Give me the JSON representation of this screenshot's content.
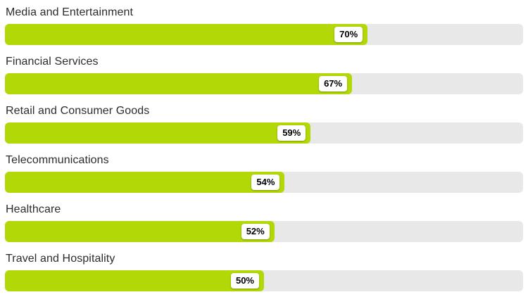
{
  "chart_data": {
    "type": "bar",
    "orientation": "horizontal",
    "title": "",
    "xlabel": "",
    "ylabel": "",
    "xlim": [
      0,
      100
    ],
    "grid": false,
    "legend": false,
    "categories": [
      "Media and Entertainment",
      "Financial Services",
      "Retail and Consumer Goods",
      "Telecommunications",
      "Healthcare",
      "Travel and Hospitality"
    ],
    "values": [
      70,
      67,
      59,
      54,
      52,
      50
    ],
    "value_labels": [
      "70%",
      "67%",
      "59%",
      "54%",
      "52%",
      "50%"
    ],
    "colors": {
      "bar": "#b2d808",
      "track": "#e8e8e8",
      "label_text": "#2c2c2c",
      "value_text": "#000000",
      "value_chip_bg": "#ffffff"
    }
  }
}
